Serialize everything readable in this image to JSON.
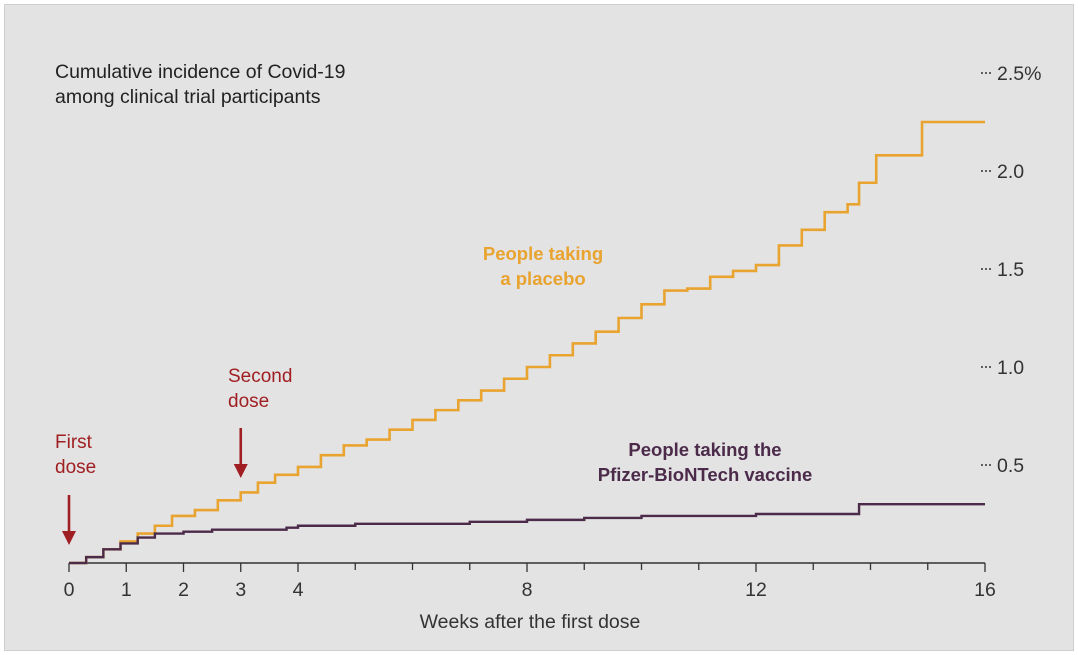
{
  "chart_data": {
    "type": "line",
    "title": "Cumulative incidence of Covid-19",
    "subtitle": "among clinical trial participants",
    "xlabel": "Weeks after the first dose",
    "ylabel": "",
    "xlim": [
      0,
      16
    ],
    "ylim": [
      0,
      2.5
    ],
    "x_ticks": [
      0,
      1,
      2,
      3,
      4,
      8,
      12,
      16
    ],
    "x_minor_ticks": [
      5,
      6,
      7,
      9,
      10,
      11,
      13,
      14,
      15
    ],
    "y_ticks": [
      {
        "value": 0.5,
        "label": "0.5"
      },
      {
        "value": 1.0,
        "label": "1.0"
      },
      {
        "value": 1.5,
        "label": "1.5"
      },
      {
        "value": 2.0,
        "label": "2.0"
      },
      {
        "value": 2.5,
        "label": "2.5%"
      }
    ],
    "y_axis_side": "right",
    "grid": false,
    "line_style": "step",
    "series": [
      {
        "name": "People taking a placebo",
        "label_lines": [
          "People taking",
          "a placebo"
        ],
        "color": "#e9a32f",
        "points": [
          [
            0,
            0
          ],
          [
            0.3,
            0.03
          ],
          [
            0.6,
            0.07
          ],
          [
            0.9,
            0.11
          ],
          [
            1.2,
            0.15
          ],
          [
            1.5,
            0.19
          ],
          [
            1.8,
            0.24
          ],
          [
            2.2,
            0.27
          ],
          [
            2.6,
            0.32
          ],
          [
            3.0,
            0.36
          ],
          [
            3.3,
            0.41
          ],
          [
            3.6,
            0.45
          ],
          [
            4.0,
            0.49
          ],
          [
            4.4,
            0.55
          ],
          [
            4.8,
            0.6
          ],
          [
            5.2,
            0.63
          ],
          [
            5.6,
            0.68
          ],
          [
            6.0,
            0.73
          ],
          [
            6.4,
            0.78
          ],
          [
            6.8,
            0.83
          ],
          [
            7.2,
            0.88
          ],
          [
            7.6,
            0.94
          ],
          [
            8.0,
            1.0
          ],
          [
            8.4,
            1.06
          ],
          [
            8.8,
            1.12
          ],
          [
            9.2,
            1.18
          ],
          [
            9.6,
            1.25
          ],
          [
            10.0,
            1.32
          ],
          [
            10.4,
            1.39
          ],
          [
            10.8,
            1.4
          ],
          [
            11.2,
            1.46
          ],
          [
            11.6,
            1.49
          ],
          [
            12.0,
            1.52
          ],
          [
            12.4,
            1.62
          ],
          [
            12.8,
            1.7
          ],
          [
            13.2,
            1.79
          ],
          [
            13.6,
            1.83
          ],
          [
            13.8,
            1.94
          ],
          [
            14.1,
            2.08
          ],
          [
            14.5,
            2.08
          ],
          [
            14.9,
            2.25
          ],
          [
            16.0,
            2.25
          ]
        ]
      },
      {
        "name": "People taking the Pfizer-BioNTech vaccine",
        "label_lines": [
          "People taking the",
          "Pfizer-BioNTech vaccine"
        ],
        "color": "#4b2a4a",
        "points": [
          [
            0,
            0
          ],
          [
            0.3,
            0.03
          ],
          [
            0.6,
            0.07
          ],
          [
            0.9,
            0.1
          ],
          [
            1.2,
            0.13
          ],
          [
            1.5,
            0.15
          ],
          [
            2.0,
            0.16
          ],
          [
            2.5,
            0.17
          ],
          [
            3.0,
            0.17
          ],
          [
            3.8,
            0.18
          ],
          [
            4.0,
            0.19
          ],
          [
            5.0,
            0.2
          ],
          [
            6.0,
            0.2
          ],
          [
            7.0,
            0.21
          ],
          [
            8.0,
            0.22
          ],
          [
            9.0,
            0.23
          ],
          [
            10.0,
            0.24
          ],
          [
            11.0,
            0.24
          ],
          [
            12.0,
            0.25
          ],
          [
            13.0,
            0.25
          ],
          [
            13.8,
            0.3
          ],
          [
            16.0,
            0.3
          ]
        ]
      }
    ],
    "annotations": [
      {
        "text_lines": [
          "First",
          "dose"
        ],
        "x": 0,
        "color": "#a01f22"
      },
      {
        "text_lines": [
          "Second",
          "dose"
        ],
        "x": 3,
        "color": "#a01f22"
      }
    ]
  }
}
